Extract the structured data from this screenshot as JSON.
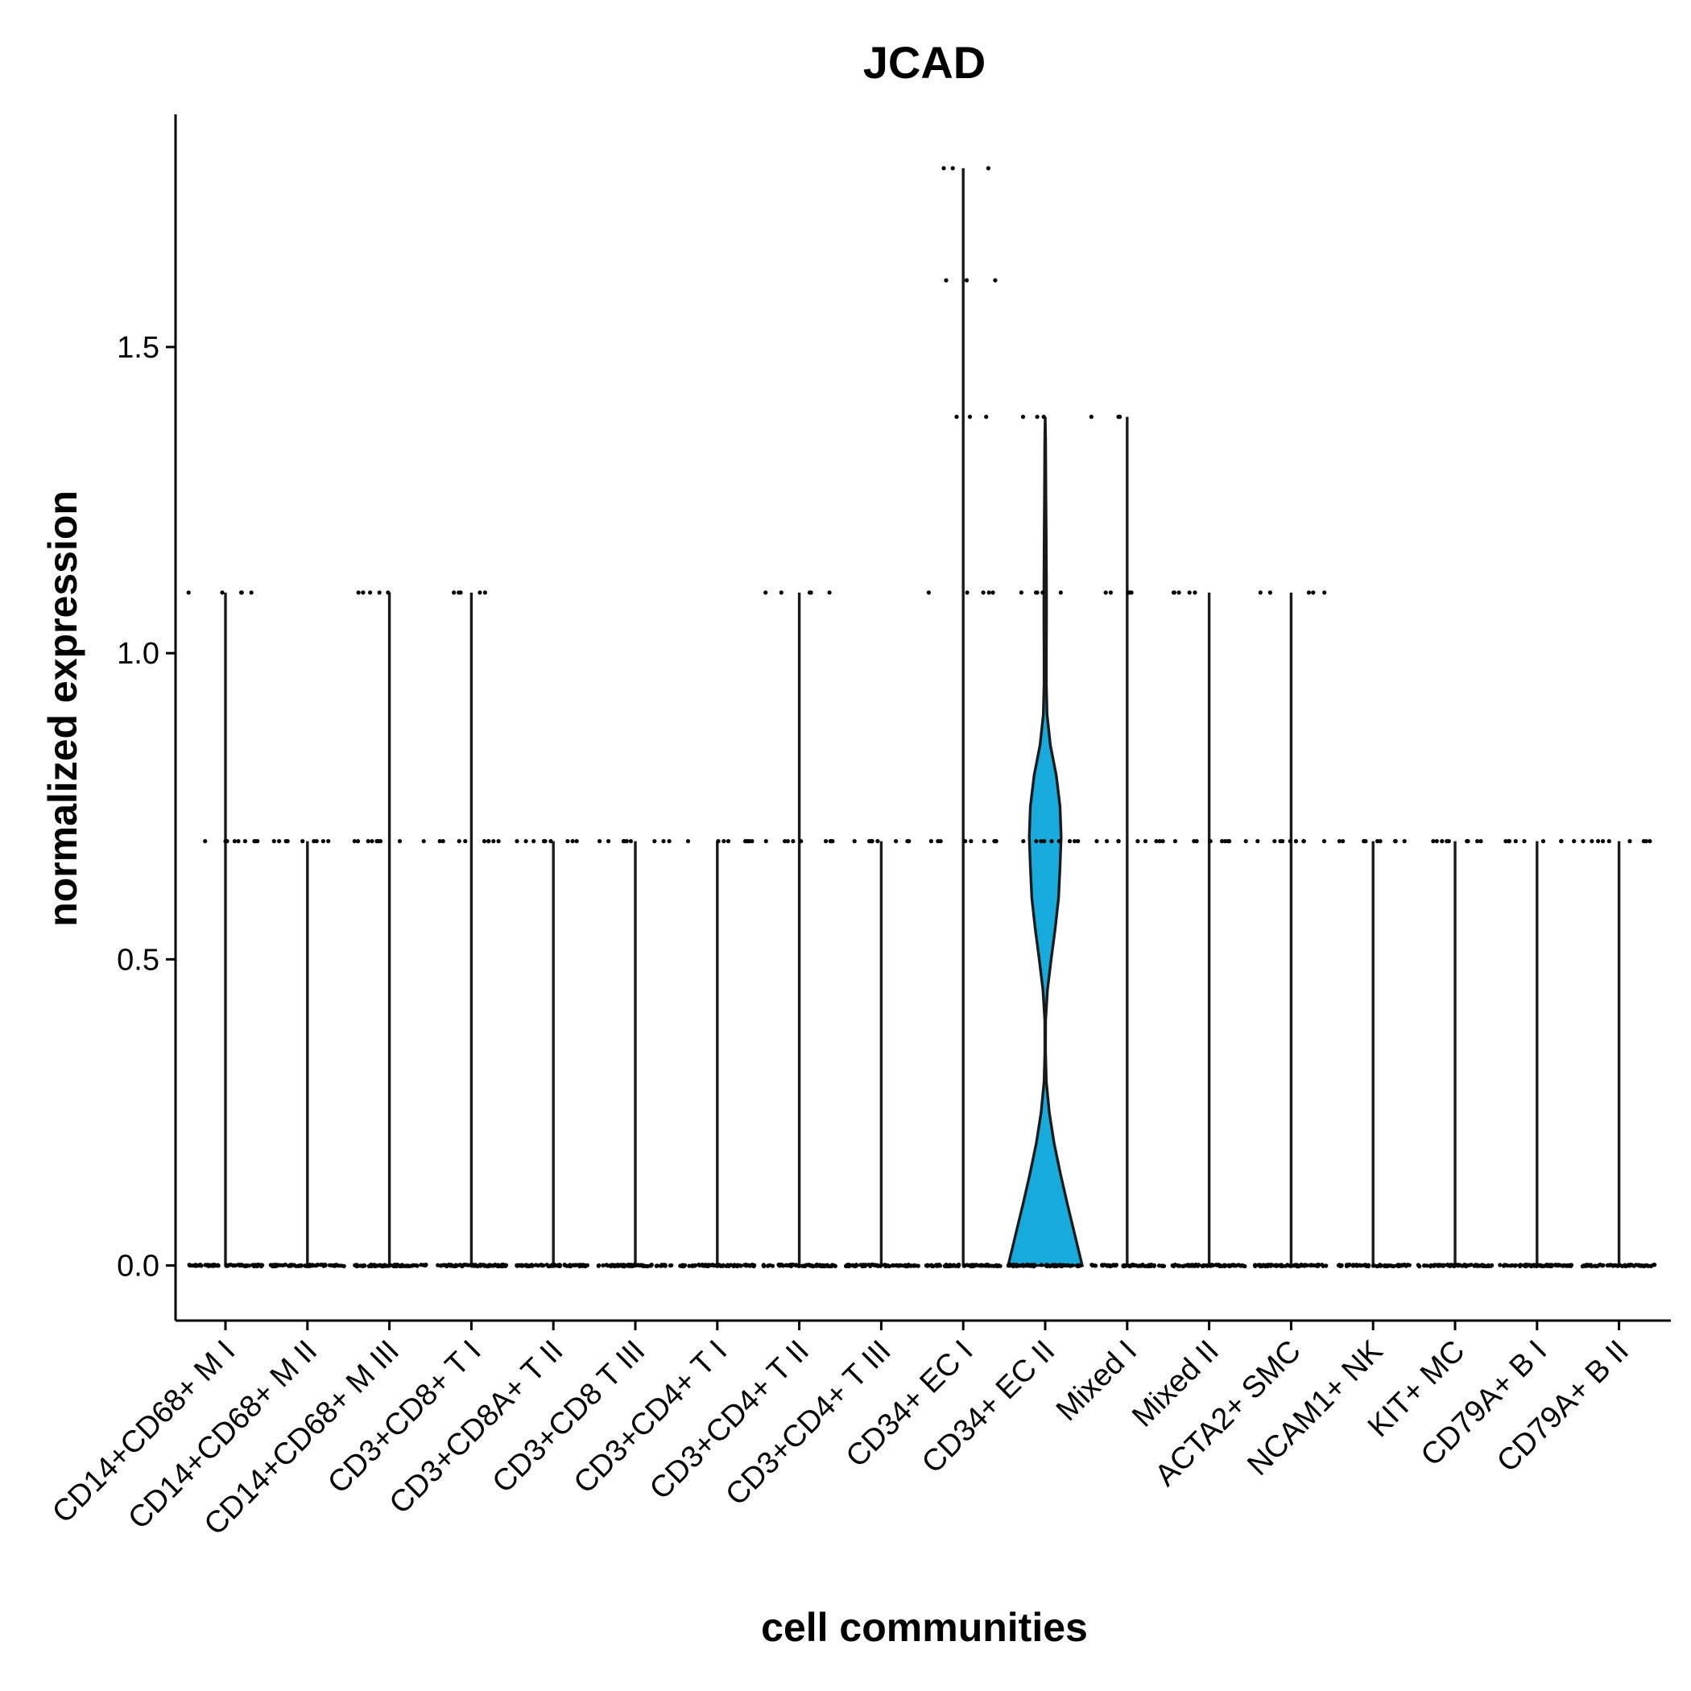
{
  "chart_data": {
    "type": "violin",
    "title": "JCAD",
    "xlabel": "cell communities",
    "ylabel": "normalized expression",
    "ylim": [
      -0.09,
      1.88
    ],
    "yticks": [
      0.0,
      0.5,
      1.0,
      1.5
    ],
    "ytick_labels": [
      "0.0",
      "0.5",
      "1.0",
      "1.5"
    ],
    "grid": false,
    "legend": "none",
    "fill_color": "#17abdd",
    "categories": [
      "CD14+CD68+ M I",
      "CD14+CD68+ M II",
      "CD14+CD68+ M III",
      "CD3+CD8+ T I",
      "CD3+CD8A+ T II",
      "CD3+CD8 T III",
      "CD3+CD4+ T I",
      "CD3+CD4+ T II",
      "CD3+CD4+ T III",
      "CD34+ EC I",
      "CD34+ EC II",
      "Mixed I",
      "Mixed II",
      "ACTA2+ SMC",
      "NCAM1+ NK",
      "KIT+ MC",
      "CD79A+ B I",
      "CD79A+ B II"
    ],
    "max_values": [
      1.099,
      0.693,
      1.099,
      1.099,
      0.693,
      0.693,
      0.693,
      1.099,
      0.693,
      1.792,
      1.386,
      1.386,
      1.099,
      1.099,
      0.693,
      0.693,
      0.693,
      0.693
    ],
    "expressed_levels": [
      [
        0.693,
        1.099
      ],
      [
        0.693
      ],
      [
        0.693,
        1.099
      ],
      [
        0.693,
        1.099
      ],
      [
        0.693
      ],
      [
        0.693
      ],
      [
        0.693
      ],
      [
        0.693,
        1.099
      ],
      [
        0.693
      ],
      [
        0.693,
        1.099,
        1.386,
        1.609,
        1.792
      ],
      [
        0.693,
        1.099,
        1.386
      ],
      [
        0.693,
        1.099,
        1.386
      ],
      [
        0.693,
        1.099
      ],
      [
        0.693,
        1.099
      ],
      [
        0.693
      ],
      [
        0.693
      ],
      [
        0.693
      ],
      [
        0.693
      ]
    ],
    "violin": {
      "category": "CD34+ EC II",
      "y": [
        0,
        0.05,
        0.1,
        0.15,
        0.2,
        0.25,
        0.3,
        0.35,
        0.4,
        0.45,
        0.5,
        0.55,
        0.6,
        0.65,
        0.7,
        0.75,
        0.8,
        0.85,
        0.9,
        0.95,
        1.0,
        1.05,
        1.1,
        1.15,
        1.2,
        1.25,
        1.3,
        1.35,
        1.386
      ],
      "density": [
        1.0,
        0.8,
        0.6,
        0.41,
        0.24,
        0.11,
        0.03,
        0.008,
        0.01,
        0.06,
        0.16,
        0.27,
        0.36,
        0.4,
        0.43,
        0.4,
        0.3,
        0.14,
        0.05,
        0.03,
        0.03,
        0.035,
        0.035,
        0.03,
        0.025,
        0.02,
        0.015,
        0.01,
        0.0
      ]
    }
  }
}
